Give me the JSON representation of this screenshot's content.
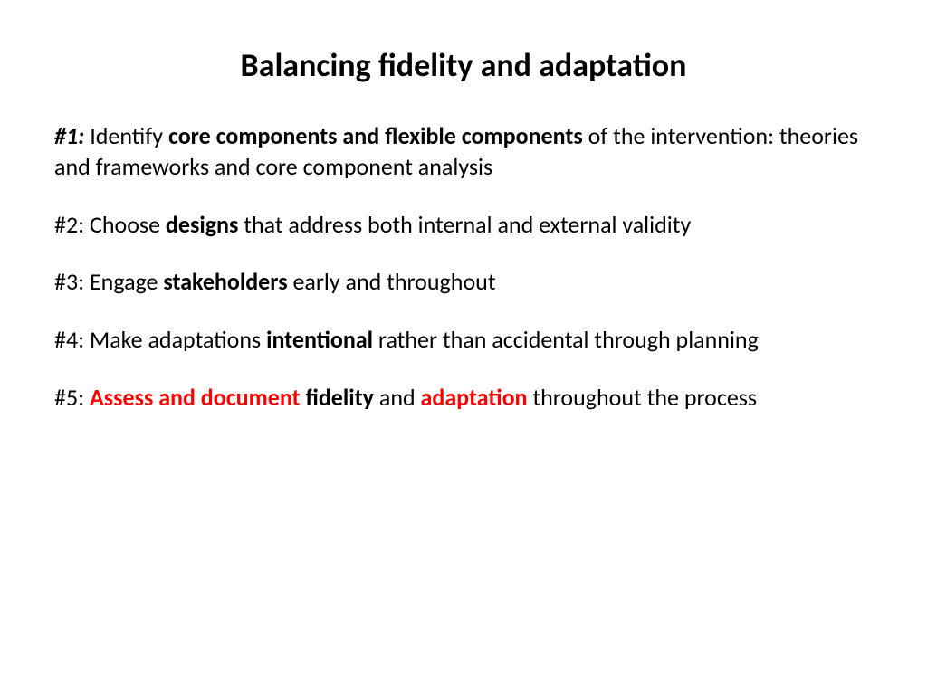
{
  "title": "Balancing fidelity and adaptation",
  "items": [
    {
      "prefix": "#1:",
      "prefix_style": "bold italic",
      "segments": [
        {
          "text": " Identify ",
          "style": ""
        },
        {
          "text": "core components and flexible components",
          "style": "bold"
        },
        {
          "text": " of the intervention: theories and frameworks and core component analysis",
          "style": ""
        }
      ]
    },
    {
      "prefix": "#2:",
      "prefix_style": "",
      "segments": [
        {
          "text": " Choose ",
          "style": ""
        },
        {
          "text": "designs",
          "style": "bold"
        },
        {
          "text": " that address both internal and external validity",
          "style": ""
        }
      ]
    },
    {
      "prefix": "#3:",
      "prefix_style": "",
      "segments": [
        {
          "text": " Engage ",
          "style": ""
        },
        {
          "text": "stakeholders",
          "style": "bold"
        },
        {
          "text": " early and throughout",
          "style": ""
        }
      ]
    },
    {
      "prefix": "#4:",
      "prefix_style": "",
      "segments": [
        {
          "text": " Make adaptations ",
          "style": ""
        },
        {
          "text": "intentional",
          "style": "bold"
        },
        {
          "text": " rather than accidental through planning",
          "style": ""
        }
      ]
    },
    {
      "prefix": "#5:",
      "prefix_style": "",
      "segments": [
        {
          "text": " ",
          "style": ""
        },
        {
          "text": "Assess and document",
          "style": "bold red"
        },
        {
          "text": " ",
          "style": ""
        },
        {
          "text": "fidelity",
          "style": "bold"
        },
        {
          "text": " and ",
          "style": ""
        },
        {
          "text": "adaptation",
          "style": "bold red"
        },
        {
          "text": " throughout the process",
          "style": ""
        }
      ]
    }
  ],
  "colors": {
    "background": "#ffffff",
    "text": "#000000",
    "accent": "#ff0000"
  },
  "typography": {
    "title_fontsize": 36,
    "body_fontsize": 26,
    "font_family": "Calibri"
  }
}
